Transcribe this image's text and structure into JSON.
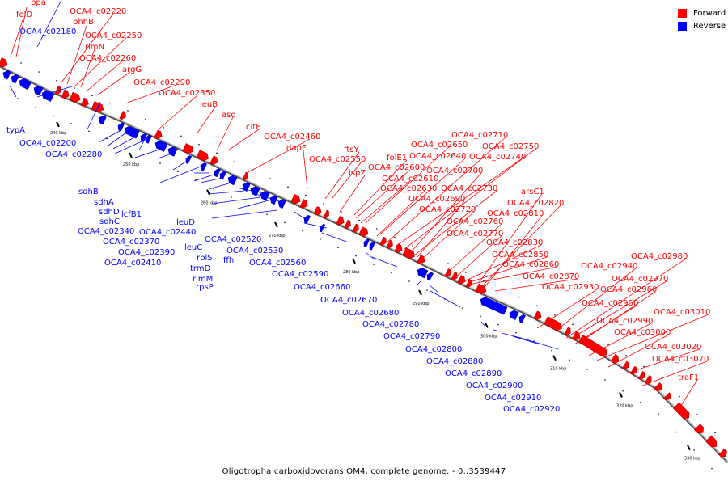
{
  "caption": "Oligotropha carboxidovorans OM4, complete genome. - 0..3539447",
  "legend": [
    {
      "label": "Forward",
      "color": "#ff0000"
    },
    {
      "label": "Reverse",
      "color": "#0000ff"
    }
  ],
  "colors": {
    "forward": "#ff0000",
    "reverse": "#0000ff",
    "backbone": "#707070"
  },
  "kbp_labels": [
    "240 kbp",
    "250 kbp",
    "260 kbp",
    "270 kbp",
    "280 kbp",
    "290 kbp",
    "300 kbp",
    "310 kbp",
    "320 kbp",
    "330 kbp"
  ],
  "forward_labels": [
    "ppa",
    "folD",
    "OCA4_c02220",
    "phhB",
    "OCA4_c02250",
    "rlmN",
    "OCA4_c02260",
    "argG",
    "OCA4_c02290",
    "OCA4_c02350",
    "leuB",
    "asd",
    "citE",
    "OCA4_c02460",
    "dapF",
    "ftsY",
    "OCA4_c02550",
    "ispZ",
    "folE1",
    "OCA4_c02600",
    "OCA4_c02610",
    "OCA4_c02630",
    "OCA4_c02650",
    "OCA4_c02640",
    "OCA4_c02710",
    "OCA4_c02750",
    "OCA4_c02740",
    "OCA4_c02700",
    "OCA4_c02730",
    "OCA4_c02690",
    "OCA4_c02720",
    "arsC1",
    "OCA4_c02820",
    "OCA4_c02810",
    "OCA4_c02760",
    "OCA4_c02770",
    "OCA4_c02830",
    "OCA4_c02850",
    "OCA4_c02860",
    "OCA4_c02870",
    "OCA4_c02930",
    "OCA4_c02940",
    "OCA4_c02980",
    "OCA4_c02970",
    "OCA4_c02960",
    "OCA4_c02950",
    "OCA4_c02990",
    "OCA4_c03010",
    "OCA4_c03000",
    "OCA4_c03020",
    "OCA4_c03070",
    "traF1"
  ],
  "reverse_labels": [
    "OCA4_c02180",
    "typA",
    "OCA4_c02200",
    "OCA4_c02280",
    "sdhB",
    "sdhA",
    "sdhD",
    "lcfB1",
    "sdhC",
    "OCA4_c02340",
    "OCA4_c02370",
    "OCA4_c02390",
    "OCA4_c02410",
    "leuD",
    "OCA4_c02440",
    "leuC",
    "rplS",
    "OCA4_c02520",
    "trmD",
    "OCA4_c02530",
    "rimM",
    "ffh",
    "rpsP",
    "OCA4_c02560",
    "OCA4_c02590",
    "OCA4_c02660",
    "OCA4_c02670",
    "OCA4_c02680",
    "OCA4_c02780",
    "OCA4_c02790",
    "OCA4_c02800",
    "OCA4_c02880",
    "OCA4_c02890",
    "OCA4_c02900",
    "OCA4_c02910",
    "OCA4_c02920"
  ]
}
